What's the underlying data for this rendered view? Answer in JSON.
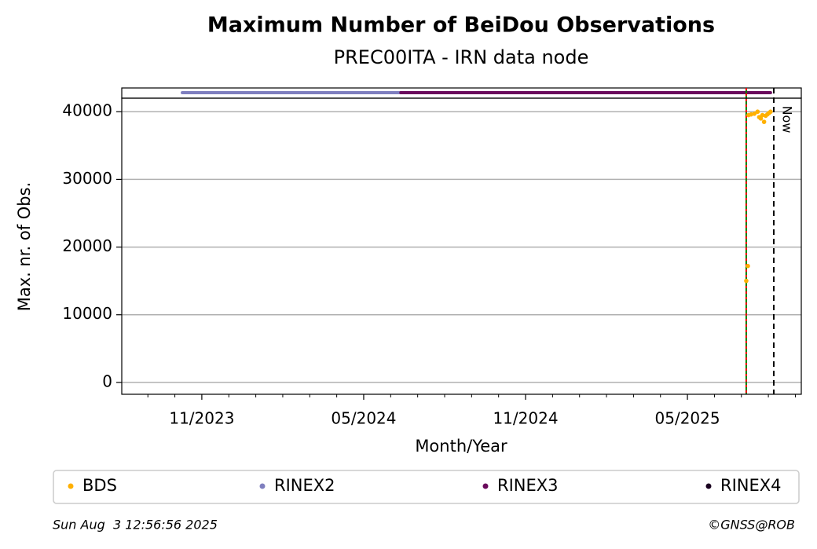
{
  "chart_data": {
    "type": "scatter",
    "title": "Maximum Number of BeiDou Observations",
    "subtitle": "PREC00ITA - IRN data node",
    "x_label": "Month/Year",
    "y_label": "Max. nr. of Obs.",
    "xlim": [
      2023.586,
      2025.685
    ],
    "ylim": [
      -1750,
      42000
    ],
    "xticks": [
      {
        "value": 2023.8333,
        "label": "11/2023"
      },
      {
        "value": 2024.3333,
        "label": "05/2024"
      },
      {
        "value": 2024.8333,
        "label": "11/2024"
      },
      {
        "value": 2025.3333,
        "label": "05/2025"
      }
    ],
    "xminorticks": [
      2023.6667,
      2023.75,
      2023.9167,
      2024.0,
      2024.0833,
      2024.1667,
      2024.25,
      2024.4167,
      2024.5,
      2024.5833,
      2024.6667,
      2024.75,
      2024.9167,
      2025.0,
      2025.0833,
      2025.1667,
      2025.25,
      2025.4167,
      2025.5,
      2025.5833,
      2025.6667
    ],
    "yticks": [
      0,
      10000,
      20000,
      30000,
      40000
    ],
    "grid": true,
    "series": [
      {
        "name": "BDS",
        "color": "#ffb000",
        "x": [
          2025.515,
          2025.52,
          2025.522,
          2025.53,
          2025.54,
          2025.55,
          2025.555,
          2025.56,
          2025.565,
          2025.57,
          2025.575,
          2025.58,
          2025.585,
          2025.59
        ],
        "values": [
          15000,
          17200,
          39500,
          39600,
          39700,
          40000,
          39200,
          39000,
          39500,
          38500,
          39400,
          39600,
          39800,
          40000
        ]
      },
      {
        "name": "RINEX2",
        "color": "#7f7fbf",
        "x": [
          2023.773,
          2024.448
        ]
      },
      {
        "name": "RINEX3",
        "color": "#6a0a5c",
        "x": [
          2024.448,
          2025.59
        ]
      },
      {
        "name": "RINEX4",
        "color": "#1a0020"
      }
    ],
    "vlines": [
      {
        "x": 2025.515,
        "colors": [
          "#008000",
          "#ff0000"
        ]
      },
      {
        "x": 2025.6,
        "label": "Now",
        "color": "#000000"
      }
    ],
    "footer_left": "Sun Aug  3 12:56:56 2025",
    "footer_right": "©GNSS@ROB"
  }
}
